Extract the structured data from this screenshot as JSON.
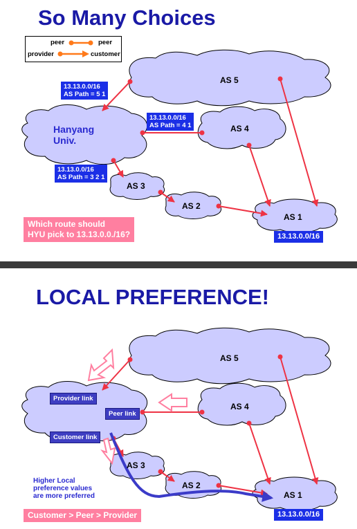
{
  "slide1": {
    "title": "So Many Choices",
    "legend": {
      "peer_left": "peer",
      "peer_right": "peer",
      "provider": "provider",
      "customer": "customer"
    },
    "nodes": {
      "as5": "AS 5",
      "as4": "AS 4",
      "as3": "AS 3",
      "as2": "AS 2",
      "as1": "AS 1",
      "hyu": "Hanyang\nUniv."
    },
    "route_as5": {
      "prefix": "13.13.0.0/16",
      "path": "AS Path = 5 1"
    },
    "route_as4": {
      "prefix": "13.13.0.0/16",
      "path": "AS Path = 4 1"
    },
    "route_as3": {
      "prefix": "13.13.0.0/16",
      "path": "AS Path = 3 2 1"
    },
    "question": "Which route should\nHYU pick to 13.13.0.0./16?",
    "destination": "13.13.0.0/16"
  },
  "slide2": {
    "title": "LOCAL PREFERENCE!",
    "nodes": {
      "as5": "AS 5",
      "as4": "AS 4",
      "as3": "AS 3",
      "as2": "AS 2",
      "as1": "AS 1"
    },
    "provider_link": "Provider link",
    "peer_link": "Peer link",
    "customer_link": "Customer link",
    "note": "Higher Local\npreference values\nare more preferred",
    "ordering": "Customer > Peer > Provider",
    "destination": "13.13.0.0/16"
  },
  "colors": {
    "title": "#1a1aa6",
    "cloud": "#ccccff",
    "edge": "#ee3344",
    "label_box": "#1b2fe6",
    "pink": "#ff7fa0",
    "curve": "#3b3bc8"
  }
}
